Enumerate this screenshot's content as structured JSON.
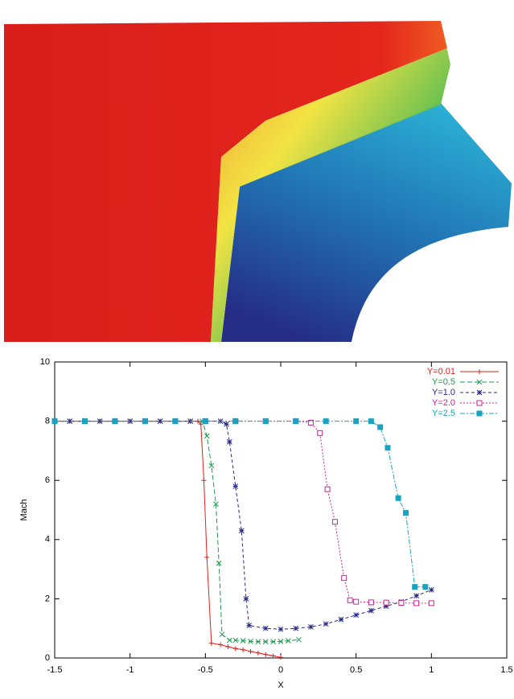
{
  "chart_data": {
    "type": "line",
    "x_label": "X",
    "y_label": "Mach",
    "xlim": [
      -1.5,
      1.5
    ],
    "xticks": [
      -1.5,
      -1,
      -0.5,
      0,
      0.5,
      1,
      1.5
    ],
    "ylim": [
      0,
      10
    ],
    "yticks": [
      0,
      2,
      4,
      6,
      8,
      10
    ],
    "legend": "top-right",
    "series": [
      {
        "name": "Y=0.01",
        "color": "#e0201b",
        "marker": "plus",
        "dash": "solid",
        "x": [
          -1.5,
          -1.4,
          -1.3,
          -1.2,
          -1.1,
          -1.0,
          -0.9,
          -0.8,
          -0.7,
          -0.6,
          -0.55,
          -0.53,
          -0.51,
          -0.49,
          -0.46,
          -0.4,
          -0.35,
          -0.3,
          -0.25,
          -0.2,
          -0.15,
          -0.1,
          -0.05,
          0
        ],
        "values": [
          8,
          8,
          8,
          8,
          8,
          8,
          8,
          8,
          8,
          8,
          8,
          7.9,
          6.0,
          3.4,
          0.5,
          0.45,
          0.38,
          0.32,
          0.28,
          0.22,
          0.17,
          0.12,
          0.07,
          0.02
        ]
      },
      {
        "name": "Y=0.5",
        "color": "#1e9a50",
        "marker": "cross",
        "dash": "6,3",
        "x": [
          -1.5,
          -1.4,
          -1.3,
          -1.2,
          -1.1,
          -1.0,
          -0.9,
          -0.8,
          -0.7,
          -0.6,
          -0.52,
          -0.49,
          -0.46,
          -0.43,
          -0.41,
          -0.39,
          -0.34,
          -0.3,
          -0.25,
          -0.2,
          -0.15,
          -0.1,
          -0.05,
          0,
          0.05,
          0.12
        ],
        "values": [
          8,
          8,
          8,
          8,
          8,
          8,
          8,
          8,
          8,
          8,
          8,
          7.5,
          6.5,
          5.2,
          3.2,
          0.8,
          0.6,
          0.6,
          0.58,
          0.56,
          0.55,
          0.55,
          0.55,
          0.56,
          0.58,
          0.62
        ]
      },
      {
        "name": "Y=1.0",
        "color": "#2a2a8a",
        "marker": "star",
        "dash": "4,3",
        "x": [
          -1.5,
          -1.4,
          -1.3,
          -1.2,
          -1.1,
          -1.0,
          -0.9,
          -0.8,
          -0.7,
          -0.6,
          -0.5,
          -0.4,
          -0.36,
          -0.34,
          -0.3,
          -0.26,
          -0.23,
          -0.21,
          -0.1,
          0,
          0.1,
          0.2,
          0.3,
          0.4,
          0.5,
          0.6,
          0.7,
          0.8,
          0.9,
          1.0
        ],
        "values": [
          8,
          8,
          8,
          8,
          8,
          8,
          8,
          8,
          8,
          8,
          8,
          8,
          7.9,
          7.3,
          5.8,
          4.3,
          2.0,
          1.1,
          1.0,
          0.97,
          1.0,
          1.05,
          1.15,
          1.3,
          1.45,
          1.6,
          1.75,
          1.9,
          2.1,
          2.3
        ]
      },
      {
        "name": "Y=2.0",
        "color": "#cc2299",
        "marker": "square",
        "dash": "2,2",
        "x": [
          -1.5,
          -1.3,
          -1.1,
          -0.9,
          -0.7,
          -0.5,
          -0.3,
          -0.1,
          0.1,
          0.2,
          0.26,
          0.31,
          0.36,
          0.42,
          0.46,
          0.5,
          0.6,
          0.7,
          0.8,
          0.9,
          1.0
        ],
        "values": [
          8,
          8,
          8,
          8,
          8,
          8,
          8,
          8,
          8,
          7.95,
          7.6,
          5.7,
          4.6,
          2.7,
          1.95,
          1.9,
          1.88,
          1.87,
          1.86,
          1.85,
          1.85
        ]
      },
      {
        "name": "Y=2.5",
        "color": "#1aa3c0",
        "marker": "filled-square",
        "dash": "6,2,2,2",
        "x": [
          -1.5,
          -1.3,
          -1.1,
          -0.9,
          -0.7,
          -0.5,
          -0.3,
          -0.1,
          0.1,
          0.3,
          0.5,
          0.6,
          0.66,
          0.71,
          0.78,
          0.83,
          0.89,
          0.96
        ],
        "values": [
          8,
          8,
          8,
          8,
          8,
          8,
          8,
          8,
          8,
          8,
          8,
          8,
          7.8,
          7.1,
          5.4,
          4.9,
          2.4,
          2.4
        ]
      }
    ]
  }
}
